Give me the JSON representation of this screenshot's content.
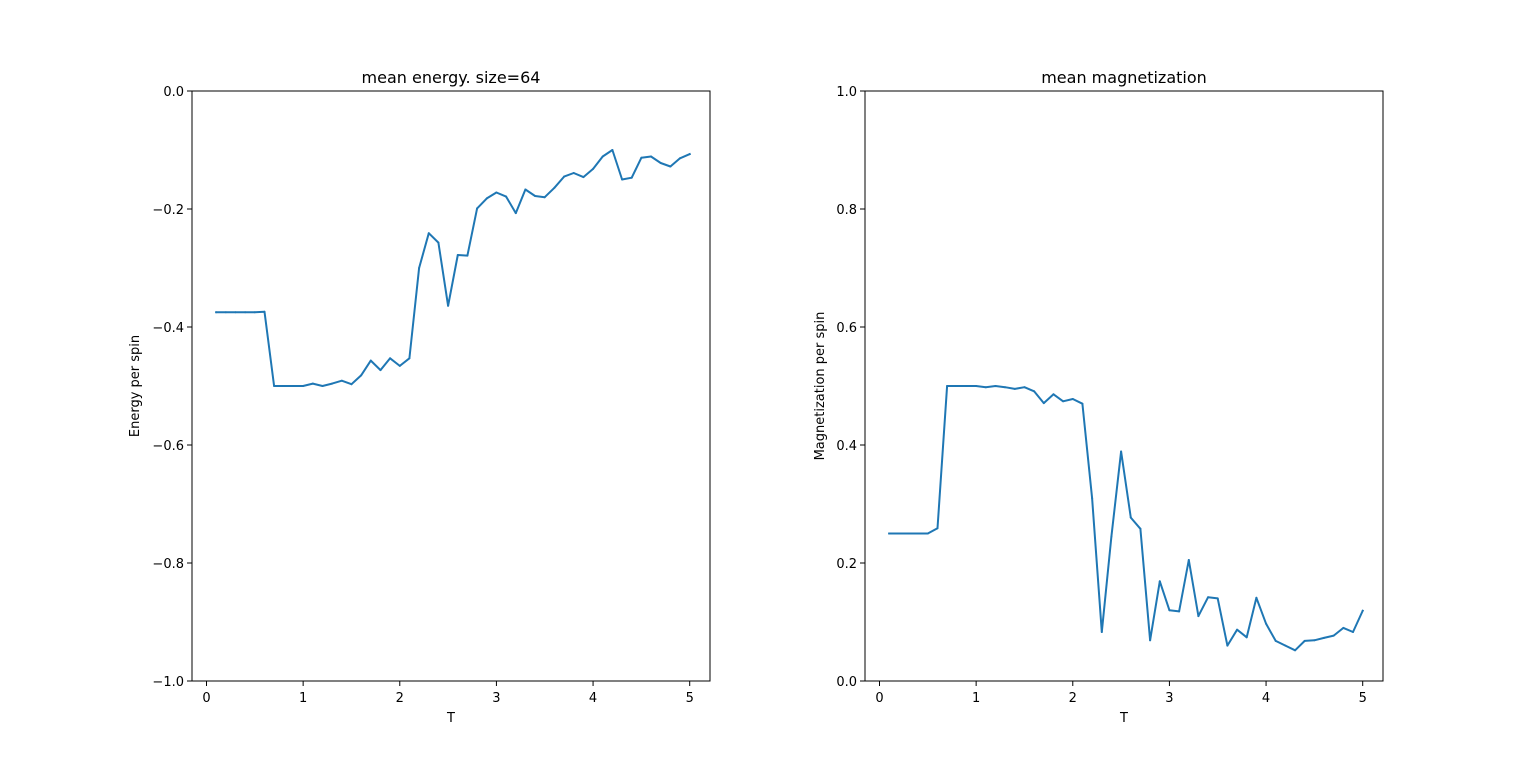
{
  "chart_data": [
    {
      "type": "line",
      "title": "mean energy. size=64",
      "xlabel": "T",
      "ylabel": "Energy per spin",
      "xlim": [
        -0.15,
        5.21
      ],
      "ylim": [
        -1.0,
        0.0
      ],
      "xticks": [
        0,
        1,
        2,
        3,
        4,
        5
      ],
      "xtick_labels": [
        "0",
        "1",
        "2",
        "3",
        "4",
        "5"
      ],
      "yticks": [
        -1.0,
        -0.8,
        -0.6,
        -0.4,
        -0.2,
        0.0
      ],
      "ytick_labels": [
        "−1.0",
        "−0.8",
        "−0.6",
        "−0.4",
        "−0.2",
        "0.0"
      ],
      "grid": false,
      "line_color": "#1f77b4",
      "series": [
        {
          "x": [
            0.1,
            0.2,
            0.3,
            0.4,
            0.5,
            0.6,
            0.7,
            0.8,
            0.9,
            1.0,
            1.1,
            1.2,
            1.3,
            1.4,
            1.5,
            1.6,
            1.7,
            1.8,
            1.9,
            2.0,
            2.1,
            2.2,
            2.3,
            2.4,
            2.5,
            2.6,
            2.7,
            2.8,
            2.9,
            3.0,
            3.1,
            3.2,
            3.3,
            3.4,
            3.5,
            3.6,
            3.7,
            3.8,
            3.9,
            4.0,
            4.1,
            4.2,
            4.3,
            4.4,
            4.5,
            4.6,
            4.7,
            4.8,
            4.9,
            5.0
          ],
          "y": [
            -0.375,
            -0.375,
            -0.375,
            -0.375,
            -0.375,
            -0.374,
            -0.5,
            -0.5,
            -0.5,
            -0.5,
            -0.496,
            -0.5,
            -0.496,
            -0.491,
            -0.497,
            -0.482,
            -0.457,
            -0.473,
            -0.453,
            -0.466,
            -0.453,
            -0.3,
            -0.241,
            -0.257,
            -0.364,
            -0.278,
            -0.279,
            -0.199,
            -0.182,
            -0.172,
            -0.179,
            -0.207,
            -0.167,
            -0.178,
            -0.18,
            -0.164,
            -0.145,
            -0.139,
            -0.146,
            -0.132,
            -0.111,
            -0.1,
            -0.15,
            -0.147,
            -0.113,
            -0.111,
            -0.122,
            -0.128,
            -0.114,
            -0.107
          ]
        }
      ]
    },
    {
      "type": "line",
      "title": "mean magnetization",
      "xlabel": "T",
      "ylabel": "Magnetization per spin",
      "xlim": [
        -0.15,
        5.21
      ],
      "ylim": [
        0.0,
        1.0
      ],
      "xticks": [
        0,
        1,
        2,
        3,
        4,
        5
      ],
      "xtick_labels": [
        "0",
        "1",
        "2",
        "3",
        "4",
        "5"
      ],
      "yticks": [
        0.0,
        0.2,
        0.4,
        0.6,
        0.8,
        1.0
      ],
      "ytick_labels": [
        "0.0",
        "0.2",
        "0.4",
        "0.6",
        "0.8",
        "1.0"
      ],
      "grid": false,
      "line_color": "#1f77b4",
      "series": [
        {
          "x": [
            0.1,
            0.2,
            0.3,
            0.4,
            0.5,
            0.6,
            0.7,
            0.8,
            0.9,
            1.0,
            1.1,
            1.2,
            1.3,
            1.4,
            1.5,
            1.6,
            1.7,
            1.8,
            1.9,
            2.0,
            2.1,
            2.2,
            2.3,
            2.4,
            2.5,
            2.6,
            2.7,
            2.8,
            2.9,
            3.0,
            3.1,
            3.2,
            3.3,
            3.4,
            3.5,
            3.6,
            3.7,
            3.8,
            3.9,
            4.0,
            4.1,
            4.2,
            4.3,
            4.4,
            4.5,
            4.6,
            4.7,
            4.8,
            4.9,
            5.0
          ],
          "y": [
            0.25,
            0.25,
            0.25,
            0.25,
            0.25,
            0.259,
            0.5,
            0.5,
            0.5,
            0.5,
            0.498,
            0.5,
            0.498,
            0.495,
            0.498,
            0.491,
            0.471,
            0.486,
            0.474,
            0.478,
            0.47,
            0.31,
            0.083,
            0.245,
            0.389,
            0.277,
            0.258,
            0.069,
            0.169,
            0.12,
            0.118,
            0.205,
            0.11,
            0.142,
            0.14,
            0.06,
            0.087,
            0.074,
            0.141,
            0.097,
            0.068,
            0.06,
            0.052,
            0.068,
            0.069,
            0.073,
            0.077,
            0.09,
            0.083,
            0.119
          ]
        }
      ]
    }
  ]
}
